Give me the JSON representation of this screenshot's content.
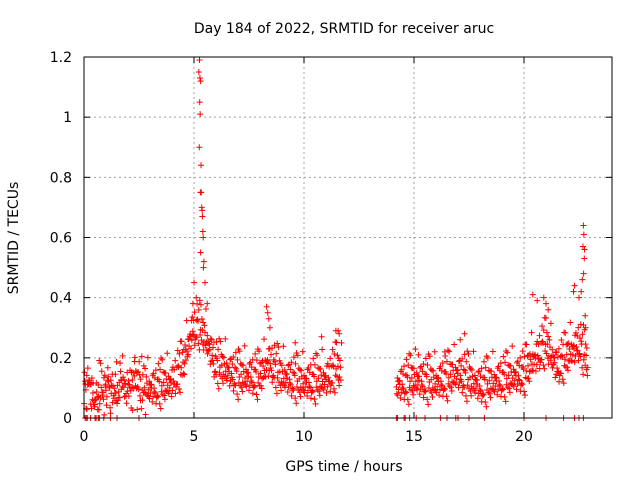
{
  "chart_data": {
    "type": "scatter",
    "title": "Day 184 of 2022, SRMTID for receiver aruc",
    "xlabel": "GPS time / hours",
    "ylabel": "SRMTID / TECUs",
    "xlim": [
      0,
      24
    ],
    "ylim": [
      0,
      1.2
    ],
    "x_ticks": [
      0,
      5,
      10,
      15,
      20
    ],
    "x_tick_labels": [
      "0",
      "5",
      "10",
      "15",
      "20"
    ],
    "y_ticks": [
      0,
      0.2,
      0.4,
      0.6,
      0.8,
      1.0,
      1.2
    ],
    "y_tick_labels": [
      "0",
      "0.2",
      "0.4",
      "0.6",
      "0.8",
      "1",
      "1.2"
    ],
    "grid": true,
    "marker": "+",
    "series": [
      {
        "name": "SRMTID",
        "color": "#ff0000",
        "segments": [
          {
            "x0": 0.0,
            "x1": 11.7,
            "step": 0.02
          },
          {
            "x0": 14.2,
            "x1": 22.9,
            "step": 0.02
          }
        ],
        "baseline_profile": [
          [
            0.0,
            0.08
          ],
          [
            0.5,
            0.1
          ],
          [
            1.0,
            0.07
          ],
          [
            2.0,
            0.1
          ],
          [
            3.0,
            0.09
          ],
          [
            4.0,
            0.11
          ],
          [
            4.5,
            0.17
          ],
          [
            4.9,
            0.28
          ],
          [
            5.2,
            0.3
          ],
          [
            5.5,
            0.26
          ],
          [
            6.0,
            0.17
          ],
          [
            7.0,
            0.13
          ],
          [
            8.0,
            0.13
          ],
          [
            8.4,
            0.18
          ],
          [
            9.0,
            0.13
          ],
          [
            10.0,
            0.11
          ],
          [
            11.0,
            0.12
          ],
          [
            11.5,
            0.16
          ],
          [
            11.7,
            0.14
          ],
          [
            14.2,
            0.1
          ],
          [
            15.0,
            0.12
          ],
          [
            16.0,
            0.11
          ],
          [
            17.0,
            0.14
          ],
          [
            18.0,
            0.1
          ],
          [
            19.0,
            0.12
          ],
          [
            20.0,
            0.14
          ],
          [
            20.5,
            0.19
          ],
          [
            21.0,
            0.24
          ],
          [
            21.5,
            0.16
          ],
          [
            22.0,
            0.2
          ],
          [
            22.5,
            0.24
          ],
          [
            22.9,
            0.18
          ]
        ],
        "spread": 0.045,
        "highlight_points": [
          [
            5.25,
            1.19
          ],
          [
            5.22,
            1.15
          ],
          [
            5.27,
            1.13
          ],
          [
            5.3,
            1.12
          ],
          [
            5.26,
            1.05
          ],
          [
            5.28,
            1.01
          ],
          [
            5.24,
            0.9
          ],
          [
            5.32,
            0.84
          ],
          [
            5.29,
            0.75
          ],
          [
            5.33,
            0.75
          ],
          [
            5.35,
            0.7
          ],
          [
            5.37,
            0.69
          ],
          [
            5.38,
            0.67
          ],
          [
            5.4,
            0.62
          ],
          [
            5.42,
            0.6
          ],
          [
            5.3,
            0.55
          ],
          [
            5.45,
            0.52
          ],
          [
            5.43,
            0.5
          ],
          [
            5.5,
            0.45
          ],
          [
            5.0,
            0.45
          ],
          [
            5.1,
            0.4
          ],
          [
            5.6,
            0.38
          ],
          [
            4.95,
            0.38
          ],
          [
            8.3,
            0.37
          ],
          [
            8.35,
            0.35
          ],
          [
            8.4,
            0.33
          ],
          [
            8.45,
            0.3
          ],
          [
            9.6,
            0.25
          ],
          [
            10.8,
            0.27
          ],
          [
            11.45,
            0.29
          ],
          [
            11.55,
            0.29
          ],
          [
            11.6,
            0.28
          ],
          [
            15.2,
            0.21
          ],
          [
            16.4,
            0.22
          ],
          [
            17.1,
            0.26
          ],
          [
            17.3,
            0.28
          ],
          [
            20.4,
            0.41
          ],
          [
            20.6,
            0.39
          ],
          [
            20.9,
            0.4
          ],
          [
            21.0,
            0.38
          ],
          [
            21.1,
            0.36
          ],
          [
            22.25,
            0.42
          ],
          [
            22.3,
            0.44
          ],
          [
            22.5,
            0.4
          ],
          [
            22.6,
            0.42
          ],
          [
            22.65,
            0.46
          ],
          [
            22.7,
            0.64
          ],
          [
            22.72,
            0.61
          ],
          [
            22.68,
            0.57
          ],
          [
            22.75,
            0.56
          ],
          [
            22.74,
            0.53
          ],
          [
            22.71,
            0.48
          ],
          [
            22.78,
            0.34
          ],
          [
            22.8,
            0.3
          ]
        ],
        "zero_points": [
          [
            0.05,
            0.0
          ],
          [
            0.1,
            0.0
          ],
          [
            0.15,
            0.0
          ],
          [
            0.3,
            0.0
          ],
          [
            0.5,
            0.0
          ],
          [
            0.55,
            0.0
          ],
          [
            0.65,
            0.0
          ],
          [
            0.7,
            0.0
          ],
          [
            0.9,
            0.0
          ],
          [
            1.2,
            0.0
          ],
          [
            1.5,
            0.0
          ],
          [
            2.5,
            0.0
          ],
          [
            14.2,
            0.0
          ],
          [
            14.25,
            0.0
          ],
          [
            14.55,
            0.0
          ],
          [
            14.6,
            0.0
          ],
          [
            14.8,
            0.0
          ],
          [
            15.1,
            0.0
          ],
          [
            15.5,
            0.0
          ],
          [
            16.2,
            0.0
          ],
          [
            16.5,
            0.0
          ],
          [
            16.9,
            0.0
          ],
          [
            17.0,
            0.0
          ],
          [
            17.5,
            0.0
          ],
          [
            18.2,
            0.0
          ],
          [
            20.0,
            0.0
          ],
          [
            21.0,
            0.0
          ],
          [
            21.8,
            0.0
          ],
          [
            22.3,
            0.0
          ],
          [
            22.5,
            0.0
          ],
          [
            22.7,
            0.0
          ]
        ]
      }
    ]
  }
}
